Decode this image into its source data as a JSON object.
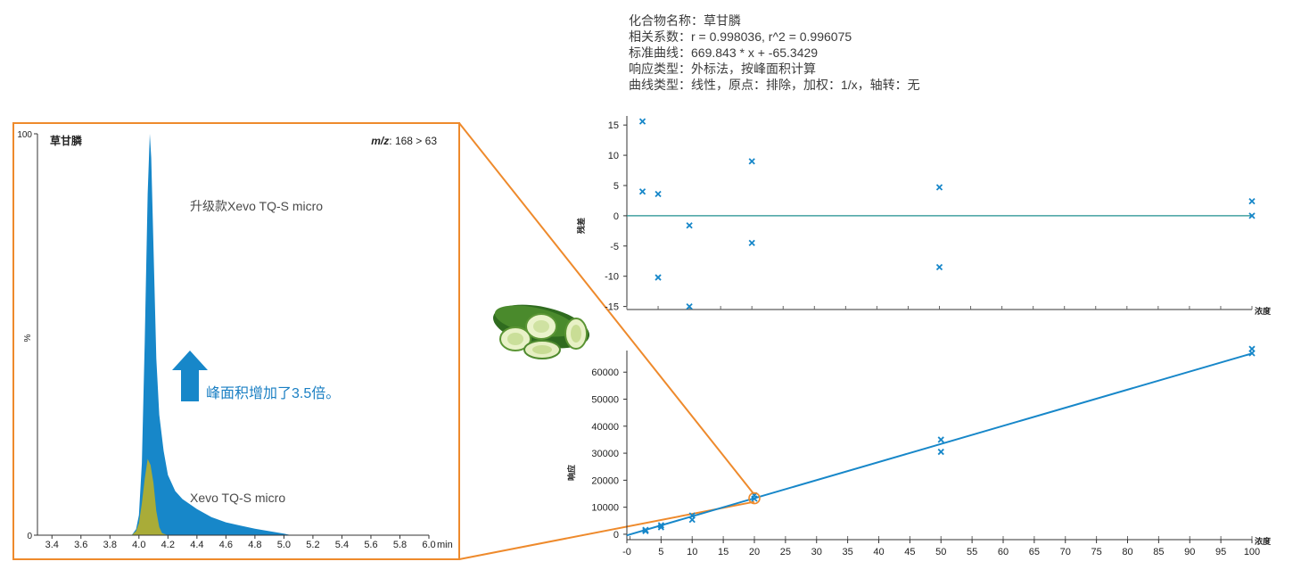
{
  "info": {
    "lines": [
      "化合物名称：草甘膦",
      "相关系数：r = 0.998036, r^2 = 0.996075",
      "标准曲线：669.843 * x + -65.3429",
      "响应类型：外标法，按峰面积计算",
      "曲线类型：线性，原点：排除，加权：1/x，轴转：无"
    ]
  },
  "colors": {
    "accent_orange": "#ee8a2c",
    "upgrade_blue": "#1787c9",
    "legacy_olive": "#a9ac38",
    "ref_line": "#1f8f8f",
    "text_blue": "#1a7fc3"
  },
  "image_icon": "cucumber-slices",
  "chart_data": [
    {
      "type": "area",
      "title": "草甘膦",
      "mz_label": "m/z",
      "mz_value": ": 168 > 63",
      "ylabel": "%",
      "x_unit": "min",
      "xlim": [
        3.3,
        6.0
      ],
      "ylim": [
        0,
        100
      ],
      "y_ticks": [
        {
          "value": 100,
          "label": "100"
        },
        {
          "value": 0,
          "label": "0"
        }
      ],
      "x_ticks": [
        {
          "value": 3.4,
          "label": "3.4"
        },
        {
          "value": 3.6,
          "label": "3.6"
        },
        {
          "value": 3.8,
          "label": "3.8"
        },
        {
          "value": 4.0,
          "label": "4.0"
        },
        {
          "value": 4.2,
          "label": "4.2"
        },
        {
          "value": 4.4,
          "label": "4.4"
        },
        {
          "value": 4.6,
          "label": "4.6"
        },
        {
          "value": 4.8,
          "label": "4.8"
        },
        {
          "value": 5.0,
          "label": "5.0"
        },
        {
          "value": 5.2,
          "label": "5.2"
        },
        {
          "value": 5.4,
          "label": "5.4"
        },
        {
          "value": 5.6,
          "label": "5.6"
        },
        {
          "value": 5.8,
          "label": "5.8"
        },
        {
          "value": 6.0,
          "label": "6.0"
        }
      ],
      "series": [
        {
          "name": "升级款Xevo TQ-S micro",
          "x": [
            3.95,
            3.98,
            4.0,
            4.02,
            4.04,
            4.06,
            4.075,
            4.085,
            4.1,
            4.12,
            4.14,
            4.17,
            4.2,
            4.25,
            4.3,
            4.4,
            4.5,
            4.6,
            4.7,
            4.8,
            4.9,
            5.0,
            5.05
          ],
          "y": [
            0,
            1.5,
            5,
            18,
            48,
            85,
            100,
            94,
            72,
            44,
            30,
            21,
            15,
            11,
            9,
            6.5,
            4.5,
            3.2,
            2.4,
            1.6,
            1.0,
            0.4,
            0
          ]
        },
        {
          "name": "Xevo TQ-S micro",
          "x": [
            3.95,
            3.98,
            4.0,
            4.02,
            4.04,
            4.06,
            4.08,
            4.1,
            4.12,
            4.14,
            4.16,
            4.2
          ],
          "y": [
            0,
            1,
            3,
            8,
            14,
            19,
            17.5,
            13,
            6,
            2,
            0.5,
            0
          ]
        }
      ],
      "annotation": "峰面积增加了3.5倍。"
    },
    {
      "type": "scatter",
      "ylabel": "残差",
      "xlabel": "浓度",
      "xlim": [
        0,
        100
      ],
      "ylim": [
        -15.5,
        16.5
      ],
      "y_ticks": [
        15,
        10,
        5,
        0,
        -5,
        -10,
        -15
      ],
      "reference_line": 0,
      "points": [
        {
          "x": 2.5,
          "y": 15.6
        },
        {
          "x": 2.5,
          "y": 4.0
        },
        {
          "x": 5,
          "y": 3.6
        },
        {
          "x": 5,
          "y": -10.2
        },
        {
          "x": 10,
          "y": -1.6
        },
        {
          "x": 10,
          "y": -15.0
        },
        {
          "x": 20,
          "y": 9.0
        },
        {
          "x": 20,
          "y": -4.5
        },
        {
          "x": 50,
          "y": 4.7
        },
        {
          "x": 50,
          "y": -8.5
        },
        {
          "x": 100,
          "y": 2.4
        },
        {
          "x": 100,
          "y": 0.0
        }
      ]
    },
    {
      "type": "scatter",
      "ylabel": "响应",
      "xlabel": "浓度",
      "xlim": [
        -0.5,
        100
      ],
      "ylim": [
        -2000,
        68000
      ],
      "y_ticks": [
        0,
        10000,
        20000,
        30000,
        40000,
        50000,
        60000
      ],
      "x_ticks": [
        {
          "value": -0.5,
          "label": "-0"
        },
        {
          "value": 5,
          "label": "5"
        },
        {
          "value": 10,
          "label": "10"
        },
        {
          "value": 15,
          "label": "15"
        },
        {
          "value": 20,
          "label": "20"
        },
        {
          "value": 25,
          "label": "25"
        },
        {
          "value": 30,
          "label": "30"
        },
        {
          "value": 35,
          "label": "35"
        },
        {
          "value": 40,
          "label": "40"
        },
        {
          "value": 45,
          "label": "45"
        },
        {
          "value": 50,
          "label": "50"
        },
        {
          "value": 55,
          "label": "55"
        },
        {
          "value": 60,
          "label": "60"
        },
        {
          "value": 65,
          "label": "65"
        },
        {
          "value": 70,
          "label": "70"
        },
        {
          "value": 75,
          "label": "75"
        },
        {
          "value": 80,
          "label": "80"
        },
        {
          "value": 85,
          "label": "85"
        },
        {
          "value": 90,
          "label": "90"
        },
        {
          "value": 95,
          "label": "95"
        },
        {
          "value": 100,
          "label": "100"
        }
      ],
      "fit_line": {
        "slope": 669.843,
        "intercept": -65.3429
      },
      "points": [
        {
          "x": 2.5,
          "y": 1200
        },
        {
          "x": 2.5,
          "y": 1600
        },
        {
          "x": 5,
          "y": 2600
        },
        {
          "x": 5,
          "y": 3300
        },
        {
          "x": 10,
          "y": 5400
        },
        {
          "x": 10,
          "y": 6900
        },
        {
          "x": 20,
          "y": 13200
        },
        {
          "x": 20,
          "y": 14400
        },
        {
          "x": 50,
          "y": 30500
        },
        {
          "x": 50,
          "y": 35000
        },
        {
          "x": 100,
          "y": 67000
        },
        {
          "x": 100,
          "y": 68600
        }
      ],
      "highlight_x": 20
    }
  ]
}
